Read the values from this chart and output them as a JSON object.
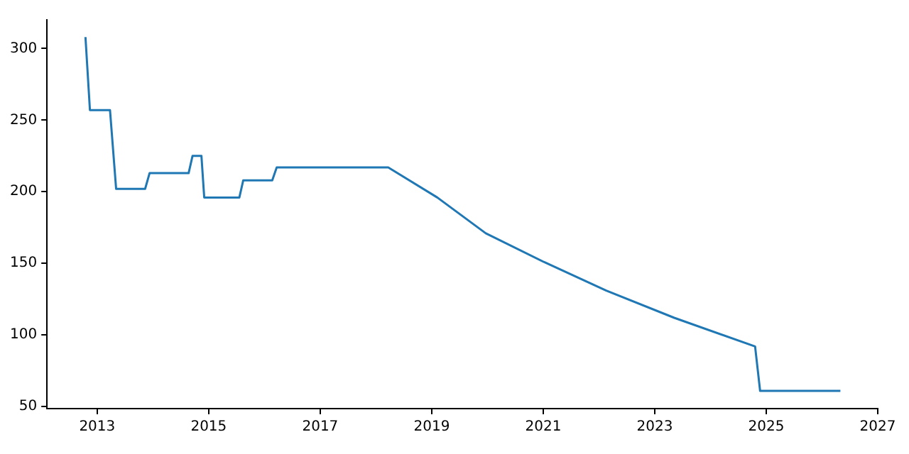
{
  "chart_data": {
    "type": "line",
    "x": [
      2012.79,
      2012.87,
      2013.23,
      2013.34,
      2013.86,
      2013.94,
      2014.64,
      2014.71,
      2014.87,
      2014.92,
      2015.55,
      2015.62,
      2016.14,
      2016.22,
      2018.22,
      2019.1,
      2019.97,
      2021.01,
      2022.13,
      2023.35,
      2024.8,
      2024.89,
      2026.33
    ],
    "series": [
      {
        "color": "#1f77b4",
        "values": [
          308,
          257,
          257,
          202,
          202,
          213,
          213,
          225,
          225,
          196,
          196,
          208,
          208,
          217,
          217,
          196,
          171,
          151,
          131,
          112,
          92,
          61,
          61
        ]
      }
    ],
    "xlim": [
      2012.1,
      2027
    ],
    "xticks": [
      2013,
      2015,
      2017,
      2019,
      2021,
      2023,
      2025,
      2027
    ],
    "ylim": [
      48.6,
      320
    ],
    "yticks": [
      50,
      100,
      150,
      200,
      250,
      300
    ],
    "grid": false,
    "legend": false,
    "marker": "none",
    "line_style": "solid"
  }
}
